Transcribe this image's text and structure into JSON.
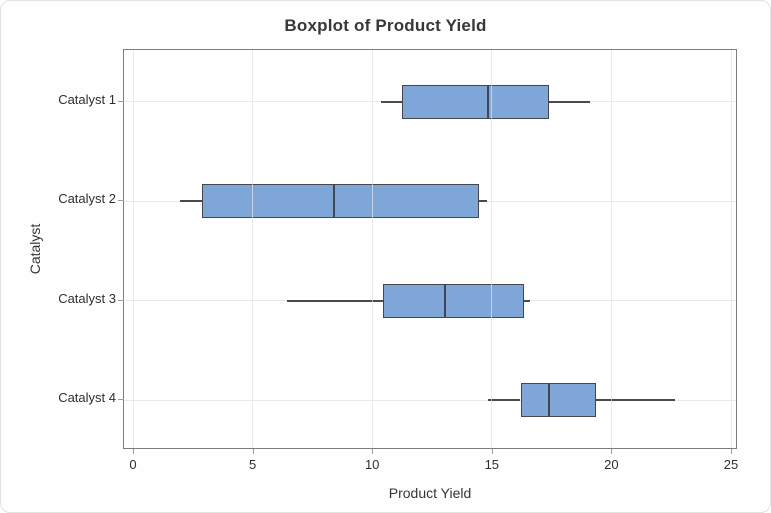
{
  "window": {
    "background": "#FFFFFF",
    "border_color": "#E2E2E2"
  },
  "chart_data": {
    "type": "boxplot",
    "orientation": "horizontal",
    "title": "Boxplot of Product Yield",
    "xlabel": "Product Yield",
    "ylabel": "Catalyst",
    "categories": [
      "Catalyst 1",
      "Catalyst 2",
      "Catalyst 3",
      "Catalyst 4"
    ],
    "xlim": [
      0,
      25
    ],
    "xticks": [
      0,
      5,
      10,
      15,
      20,
      25
    ],
    "grid": true,
    "legend_position": "none",
    "boxes": [
      {
        "category": "Catalyst 1",
        "whisker_low": 10.35,
        "q1": 11.25,
        "median": 14.85,
        "q3": 17.4,
        "whisker_high": 19.1
      },
      {
        "category": "Catalyst 2",
        "whisker_low": 1.95,
        "q1": 2.9,
        "median": 8.4,
        "q3": 14.45,
        "whisker_high": 14.8
      },
      {
        "category": "Catalyst 3",
        "whisker_low": 6.45,
        "q1": 10.45,
        "median": 13.05,
        "q3": 16.35,
        "whisker_high": 16.6
      },
      {
        "category": "Catalyst 4",
        "whisker_low": 14.85,
        "q1": 16.2,
        "median": 17.4,
        "q3": 19.35,
        "whisker_high": 22.65
      }
    ],
    "colors": {
      "box_fill": "#7EA6D8",
      "box_border": "#44484C",
      "whisker": "#4A4A4A",
      "median": "#44484C",
      "gridline": "#E9E9E9",
      "plot_border": "#7D7D7D",
      "tick": "#9E9E9E",
      "text": "#2F2F2F"
    }
  }
}
